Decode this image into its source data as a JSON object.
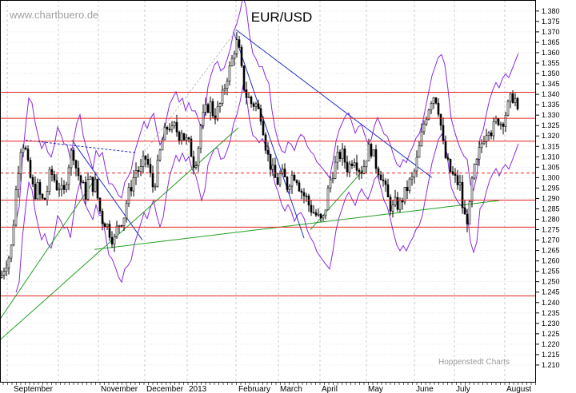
{
  "watermark": "www.chartbuero.de",
  "credit": "Hoppenstedt Charts",
  "chart_data": {
    "type": "candlestick",
    "title": "EUR/USD",
    "y_axis": {
      "position": "right",
      "min": 1.205,
      "max": 1.383,
      "tick_step": 0.005,
      "tick_labels": [
        "1.210",
        "1.215",
        "1.220",
        "1.225",
        "1.230",
        "1.235",
        "1.240",
        "1.245",
        "1.250",
        "1.255",
        "1.260",
        "1.265",
        "1.270",
        "1.275",
        "1.280",
        "1.285",
        "1.290",
        "1.295",
        "1.300",
        "1.305",
        "1.310",
        "1.315",
        "1.320",
        "1.325",
        "1.330",
        "1.335",
        "1.340",
        "1.345",
        "1.350",
        "1.355",
        "1.360",
        "1.365",
        "1.370",
        "1.375",
        "1.380"
      ]
    },
    "x_axis": {
      "month_labels": [
        "September",
        "November",
        "December",
        "2013",
        "February",
        "March",
        "April",
        "May",
        "June",
        "July",
        "August"
      ],
      "gridlines": "vertical dashed, monthly"
    },
    "horizontal_lines": [
      1.341,
      1.3285,
      1.3175,
      1.3022,
      1.2892,
      1.2762,
      1.2432
    ],
    "price_path": [
      [
        0,
        1.252
      ],
      [
        5,
        1.258
      ],
      [
        10,
        1.262
      ],
      [
        14,
        1.268
      ],
      [
        18,
        1.29
      ],
      [
        22,
        1.305
      ],
      [
        26,
        1.318
      ],
      [
        30,
        1.315
      ],
      [
        34,
        1.305
      ],
      [
        38,
        1.298
      ],
      [
        42,
        1.292
      ],
      [
        46,
        1.295
      ],
      [
        50,
        1.29
      ],
      [
        54,
        1.288
      ],
      [
        58,
        1.294
      ],
      [
        62,
        1.303
      ],
      [
        66,
        1.3
      ],
      [
        70,
        1.296
      ],
      [
        74,
        1.296
      ],
      [
        78,
        1.29
      ],
      [
        82,
        1.3
      ],
      [
        86,
        1.309
      ],
      [
        90,
        1.314
      ],
      [
        94,
        1.305
      ],
      [
        98,
        1.3
      ],
      [
        102,
        1.296
      ],
      [
        106,
        1.292
      ],
      [
        110,
        1.3
      ],
      [
        114,
        1.296
      ],
      [
        118,
        1.297
      ],
      [
        122,
        1.288
      ],
      [
        126,
        1.28
      ],
      [
        130,
        1.279
      ],
      [
        134,
        1.276
      ],
      [
        138,
        1.272
      ],
      [
        142,
        1.27
      ],
      [
        146,
        1.277
      ],
      [
        150,
        1.279
      ],
      [
        154,
        1.282
      ],
      [
        158,
        1.29
      ],
      [
        162,
        1.295
      ],
      [
        166,
        1.3
      ],
      [
        170,
        1.305
      ],
      [
        174,
        1.302
      ],
      [
        178,
        1.307
      ],
      [
        182,
        1.31
      ],
      [
        186,
        1.302
      ],
      [
        190,
        1.296
      ],
      [
        194,
        1.3
      ],
      [
        198,
        1.31
      ],
      [
        202,
        1.318
      ],
      [
        206,
        1.322
      ],
      [
        210,
        1.326
      ],
      [
        214,
        1.322
      ],
      [
        218,
        1.325
      ],
      [
        222,
        1.32
      ],
      [
        226,
        1.323
      ],
      [
        230,
        1.318
      ],
      [
        234,
        1.317
      ],
      [
        238,
        1.312
      ],
      [
        242,
        1.306
      ],
      [
        246,
        1.312
      ],
      [
        250,
        1.325
      ],
      [
        254,
        1.33
      ],
      [
        258,
        1.334
      ],
      [
        262,
        1.335
      ],
      [
        266,
        1.33
      ],
      [
        270,
        1.331
      ],
      [
        274,
        1.335
      ],
      [
        278,
        1.34
      ],
      [
        282,
        1.348
      ],
      [
        286,
        1.352
      ],
      [
        290,
        1.358
      ],
      [
        294,
        1.366
      ],
      [
        298,
        1.36
      ],
      [
        302,
        1.348
      ],
      [
        306,
        1.34
      ],
      [
        310,
        1.338
      ],
      [
        314,
        1.335
      ],
      [
        318,
        1.336
      ],
      [
        322,
        1.332
      ],
      [
        326,
        1.33
      ],
      [
        330,
        1.318
      ],
      [
        334,
        1.31
      ],
      [
        338,
        1.305
      ],
      [
        342,
        1.3
      ],
      [
        346,
        1.298
      ],
      [
        350,
        1.302
      ],
      [
        354,
        1.3
      ],
      [
        358,
        1.296
      ],
      [
        362,
        1.3
      ],
      [
        366,
        1.302
      ],
      [
        370,
        1.3
      ],
      [
        374,
        1.295
      ],
      [
        378,
        1.292
      ],
      [
        382,
        1.29
      ],
      [
        386,
        1.286
      ],
      [
        390,
        1.284
      ],
      [
        394,
        1.282
      ],
      [
        398,
        1.28
      ],
      [
        402,
        1.278
      ],
      [
        406,
        1.286
      ],
      [
        410,
        1.296
      ],
      [
        414,
        1.302
      ],
      [
        418,
        1.306
      ],
      [
        422,
        1.31
      ],
      [
        426,
        1.312
      ],
      [
        430,
        1.308
      ],
      [
        434,
        1.304
      ],
      [
        438,
        1.308
      ],
      [
        442,
        1.31
      ],
      [
        446,
        1.306
      ],
      [
        450,
        1.303
      ],
      [
        454,
        1.306
      ],
      [
        458,
        1.312
      ],
      [
        462,
        1.315
      ],
      [
        466,
        1.31
      ],
      [
        470,
        1.305
      ],
      [
        474,
        1.303
      ],
      [
        478,
        1.298
      ],
      [
        482,
        1.292
      ],
      [
        486,
        1.287
      ],
      [
        490,
        1.285
      ],
      [
        494,
        1.288
      ],
      [
        498,
        1.286
      ],
      [
        502,
        1.29
      ],
      [
        506,
        1.293
      ],
      [
        510,
        1.297
      ],
      [
        514,
        1.299
      ],
      [
        518,
        1.304
      ],
      [
        522,
        1.312
      ],
      [
        526,
        1.32
      ],
      [
        530,
        1.328
      ],
      [
        534,
        1.333
      ],
      [
        538,
        1.338
      ],
      [
        542,
        1.34
      ],
      [
        546,
        1.336
      ],
      [
        550,
        1.325
      ],
      [
        554,
        1.312
      ],
      [
        558,
        1.307
      ],
      [
        562,
        1.303
      ],
      [
        566,
        1.3
      ],
      [
        570,
        1.298
      ],
      [
        574,
        1.296
      ],
      [
        578,
        1.283
      ],
      [
        582,
        1.279
      ],
      [
        586,
        1.285
      ],
      [
        590,
        1.302
      ],
      [
        594,
        1.305
      ],
      [
        598,
        1.312
      ],
      [
        602,
        1.318
      ],
      [
        606,
        1.322
      ],
      [
        610,
        1.325
      ],
      [
        614,
        1.322
      ],
      [
        618,
        1.326
      ],
      [
        622,
        1.328
      ],
      [
        626,
        1.326
      ],
      [
        630,
        1.33
      ],
      [
        634,
        1.334
      ],
      [
        638,
        1.338
      ],
      [
        642,
        1.34
      ],
      [
        646,
        1.33
      ]
    ]
  }
}
